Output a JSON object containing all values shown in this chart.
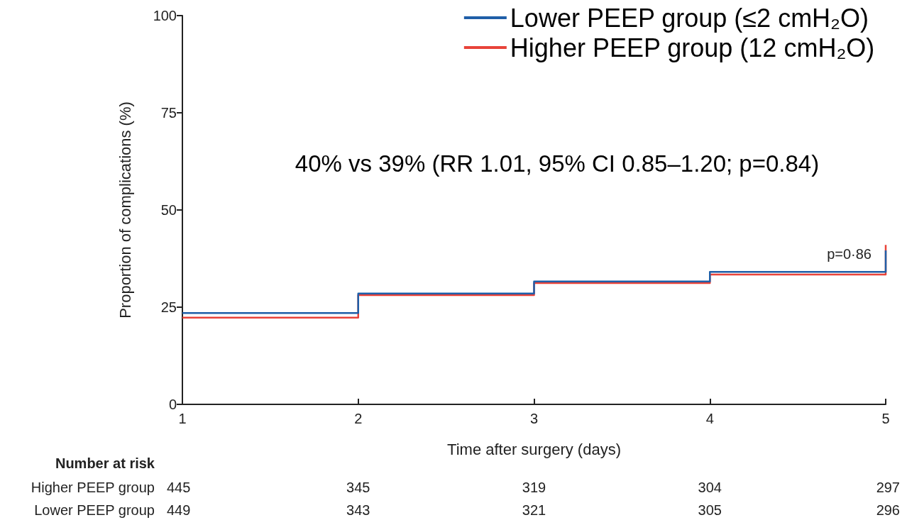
{
  "chart_data": {
    "type": "step",
    "xlabel": "Time after surgery (days)",
    "ylabel": "Proportion of complications (%)",
    "x": [
      1,
      2,
      3,
      4,
      5
    ],
    "series": [
      {
        "name": "Lower PEEP group (≤2 cmH₂O)",
        "color": "#1f5fa8",
        "values": [
          23.5,
          28.5,
          31.6,
          34.1,
          39.6
        ]
      },
      {
        "name": "Higher PEEP group (12 cmH₂O)",
        "color": "#e8433a",
        "values": [
          22.3,
          28.1,
          31.2,
          33.4,
          41
        ]
      }
    ],
    "xlim": [
      1,
      5
    ],
    "xticks": [
      1,
      2,
      3,
      4,
      5
    ],
    "ylim": [
      0,
      100
    ],
    "yticks": [
      0,
      25,
      50,
      75,
      100
    ],
    "grid": false,
    "legend": "top right",
    "marker": "none",
    "line_style": "solid",
    "annotations": [
      "40% vs 39% (RR 1.01, 95% CI 0.85–1.20; p=0.84)",
      "p=0·86",
      "Number at risk",
      "Higher PEEP group",
      "445",
      "345",
      "319",
      "304",
      "297",
      "Lower PEEP group",
      "449",
      "343",
      "321",
      "305",
      "296"
    ]
  }
}
